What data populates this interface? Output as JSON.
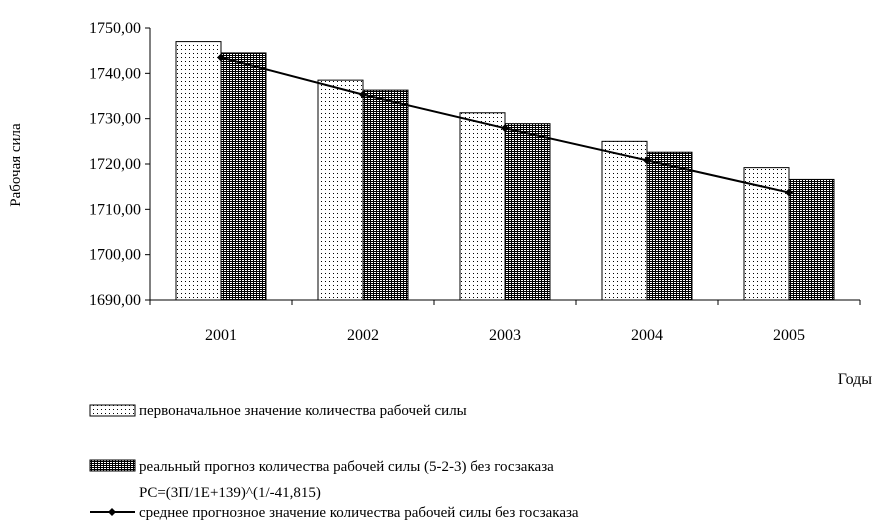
{
  "chart_data": {
    "type": "bar",
    "ylabel": "Рабочая сила",
    "xlabel": "Годы",
    "ylim": [
      1690,
      1750
    ],
    "yticks": [
      "1750,00",
      "1740,00",
      "1730,00",
      "1720,00",
      "1710,00",
      "1700,00",
      "1690,00"
    ],
    "categories": [
      "2001",
      "2002",
      "2003",
      "2004",
      "2005"
    ],
    "series": [
      {
        "name": "первоначальное значение количества рабочей силы",
        "kind": "bar",
        "pattern": "dots",
        "values": [
          1747.0,
          1738.5,
          1731.3,
          1725.0,
          1719.2
        ]
      },
      {
        "name": "реальный прогноз количества рабочей силы (5-2-3) без госзаказа",
        "name_line2": "PC=(3П/1E+139)^(1/-41,815)",
        "kind": "bar",
        "pattern": "grid",
        "values": [
          1744.5,
          1736.3,
          1728.9,
          1722.6,
          1716.6
        ]
      },
      {
        "name": "среднее прогнозное значение количества рабочей силы без госзаказа",
        "kind": "line",
        "color": "#000000",
        "values": [
          1743.5,
          1735.3,
          1727.9,
          1720.8,
          1713.7
        ]
      }
    ],
    "grid": false,
    "legend": "bottom"
  }
}
